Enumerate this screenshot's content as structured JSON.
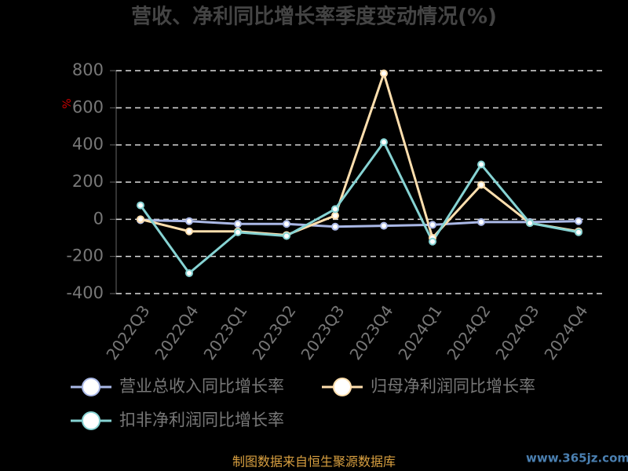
{
  "chart_data": {
    "type": "line",
    "title": "营收、净利同比增长率季度变动情况(%)",
    "y_label": "%",
    "categories": [
      "2022Q3",
      "2022Q4",
      "2023Q1",
      "2023Q2",
      "2023Q3",
      "2023Q4",
      "2024Q1",
      "2024Q2",
      "2024Q3",
      "2024Q4"
    ],
    "series": [
      {
        "name": "营业总收入同比增长率",
        "color": "#aab8e6",
        "values": [
          -5,
          -10,
          -25,
          -25,
          -40,
          -35,
          -30,
          -15,
          -15,
          -10
        ]
      },
      {
        "name": "归母净利润同比增长率",
        "color": "#ffdfae",
        "values": [
          0,
          -65,
          -65,
          -85,
          20,
          785,
          -100,
          185,
          -20,
          -65
        ]
      },
      {
        "name": "扣非净利润同比增长率",
        "color": "#86d3d3",
        "values": [
          75,
          -290,
          -70,
          -90,
          55,
          415,
          -120,
          295,
          -20,
          -70
        ]
      }
    ],
    "ylim": [
      -400,
      800
    ],
    "yticks": [
      -400,
      -200,
      0,
      200,
      400,
      600,
      800
    ],
    "grid": true,
    "legend": "bottom",
    "source": "制图数据来自恒生聚源数据库",
    "watermark": "www.365jz.com"
  }
}
